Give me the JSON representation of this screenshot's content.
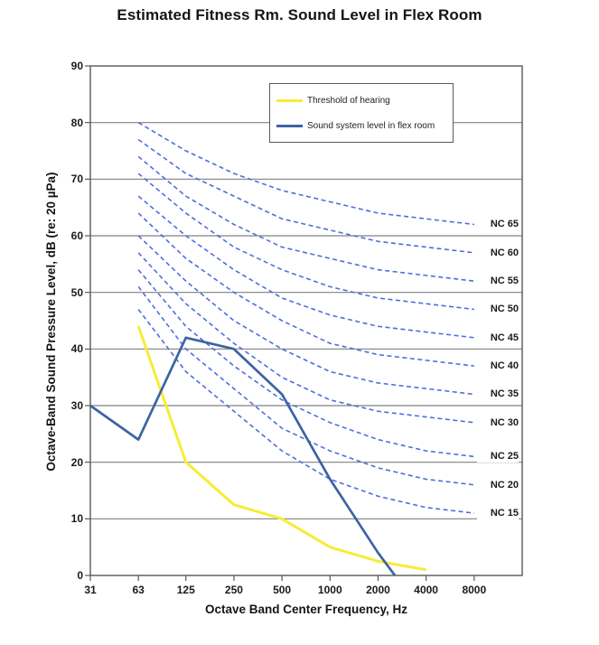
{
  "title": "Estimated Fitness Rm. Sound Level in Flex Room",
  "colors": {
    "threshold_line": "#f7ec35",
    "sound_system_line": "#3d63a5",
    "nc_curve": "#4e6ede",
    "gridline": "#808080",
    "axis_border": "#595959",
    "text": "#151515",
    "background": "#ffffff"
  },
  "legend": {
    "items": [
      {
        "label": "Threshold of hearing",
        "color": "#f7ec35"
      },
      {
        "label": "Sound system level in flex room",
        "color": "#3d63a5"
      }
    ]
  },
  "chart_data": {
    "type": "line",
    "title": "Estimated Fitness Rm. Sound Level in Flex Room",
    "xlabel": "Octave Band Center Frequency, Hz",
    "ylabel": "Octave-Band Sound Pressure Level, dB (re: 20 µPa)",
    "x_scale": "logarithmic-octave",
    "x_ticks": [
      31,
      63,
      125,
      250,
      500,
      1000,
      2000,
      4000,
      8000
    ],
    "y_ticks": [
      0,
      10,
      20,
      30,
      40,
      50,
      60,
      70,
      80,
      90
    ],
    "ylim": [
      0,
      90
    ],
    "grid": "horizontal-only",
    "legend_position": "inside-top-center",
    "series": [
      {
        "name": "Threshold of hearing",
        "style": "solid",
        "color": "#f7ec35",
        "x": [
          63,
          125,
          250,
          500,
          1000,
          2000,
          4000
        ],
        "y": [
          44,
          20,
          12.5,
          10,
          5,
          2.5,
          1
        ]
      },
      {
        "name": "Sound system level in flex room",
        "style": "solid",
        "color": "#3d63a5",
        "x": [
          31,
          63,
          125,
          250,
          500,
          1000,
          2000,
          2550
        ],
        "y": [
          30,
          24,
          42,
          40,
          32,
          17,
          4,
          0
        ],
        "note": "line descends below chart floor and is clipped at 0 dB near 2550 Hz"
      }
    ],
    "nc_curves": {
      "style": "dashed",
      "color": "#4e6ede",
      "frequencies": [
        63,
        125,
        250,
        500,
        1000,
        2000,
        4000,
        8000
      ],
      "curves": [
        {
          "label": "NC 65",
          "values": [
            80,
            75,
            71,
            68,
            66,
            64,
            63,
            62
          ]
        },
        {
          "label": "NC 60",
          "values": [
            77,
            71,
            67,
            63,
            61,
            59,
            58,
            57
          ]
        },
        {
          "label": "NC 55",
          "values": [
            74,
            67,
            62,
            58,
            56,
            54,
            53,
            52
          ]
        },
        {
          "label": "NC 50",
          "values": [
            71,
            64,
            58,
            54,
            51,
            49,
            48,
            47
          ]
        },
        {
          "label": "NC 45",
          "values": [
            67,
            60,
            54,
            49,
            46,
            44,
            43,
            42
          ]
        },
        {
          "label": "NC 40",
          "values": [
            64,
            56,
            50,
            45,
            41,
            39,
            38,
            37
          ]
        },
        {
          "label": "NC 35",
          "values": [
            60,
            52,
            45,
            40,
            36,
            34,
            33,
            32
          ]
        },
        {
          "label": "NC 30",
          "values": [
            57,
            48,
            41,
            35,
            31,
            29,
            28,
            27
          ]
        },
        {
          "label": "NC 25",
          "values": [
            54,
            44,
            37,
            31,
            27,
            24,
            22,
            21
          ]
        },
        {
          "label": "NC 20",
          "values": [
            51,
            40,
            33,
            26,
            22,
            19,
            17,
            16
          ]
        },
        {
          "label": "NC 15",
          "values": [
            47,
            36,
            29,
            22,
            17,
            14,
            12,
            11
          ]
        }
      ]
    }
  }
}
